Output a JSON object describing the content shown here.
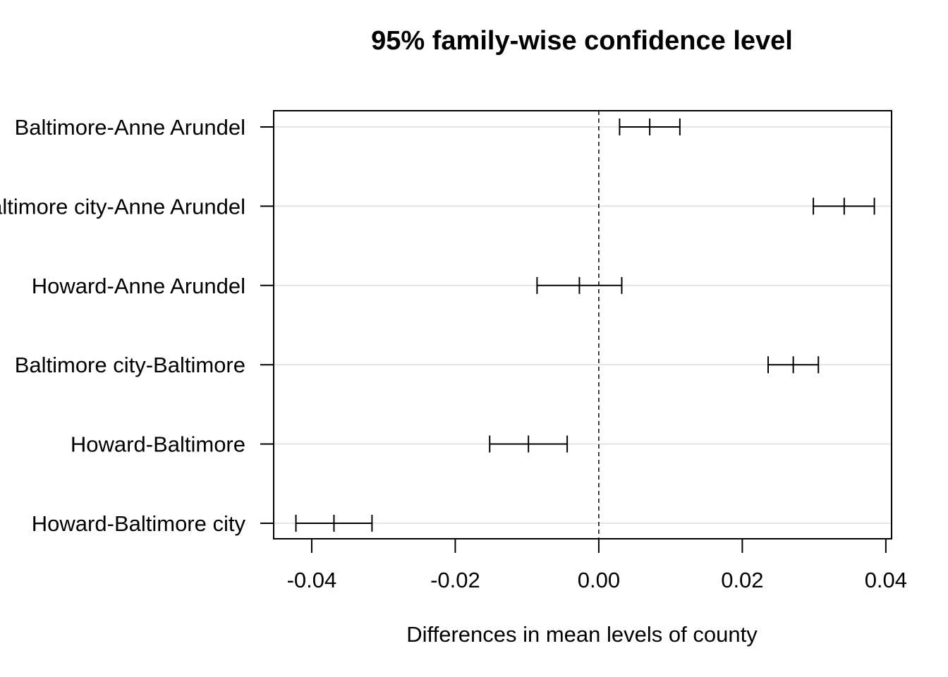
{
  "chart_data": {
    "type": "interval",
    "title": "95% family-wise confidence level",
    "xlabel": "Differences in mean levels of county",
    "ylabel": "",
    "xlim": [
      -0.0453,
      0.0408
    ],
    "x_ticks": [
      -0.04,
      -0.02,
      0.0,
      0.02,
      0.04
    ],
    "x_tick_labels": [
      "-0.04",
      "-0.02",
      "0.00",
      "0.02",
      "0.04"
    ],
    "reference_line": 0.0,
    "grid": "horizontal",
    "categories": [
      "Baltimore-Anne Arundel",
      "Baltimore city-Anne Arundel",
      "Howard-Anne Arundel",
      "Baltimore city-Baltimore",
      "Howard-Baltimore",
      "Howard-Baltimore city"
    ],
    "intervals": [
      {
        "lwr": 0.0029,
        "diff": 0.0071,
        "upr": 0.0113
      },
      {
        "lwr": 0.0299,
        "diff": 0.0342,
        "upr": 0.0384
      },
      {
        "lwr": -0.0086,
        "diff": -0.0027,
        "upr": 0.0032
      },
      {
        "lwr": 0.0236,
        "diff": 0.0271,
        "upr": 0.0306
      },
      {
        "lwr": -0.0152,
        "diff": -0.0098,
        "upr": -0.0044
      },
      {
        "lwr": -0.0422,
        "diff": -0.0369,
        "upr": -0.0316
      }
    ]
  }
}
